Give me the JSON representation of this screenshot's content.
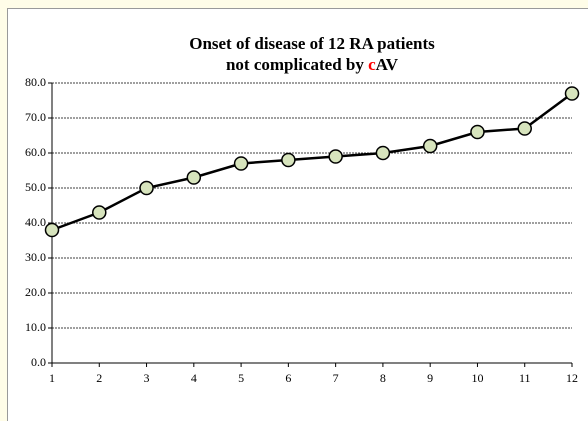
{
  "chart_data": {
    "type": "line",
    "title": [
      "Onset of disease of 12 RA patients",
      [
        "not complicated by ",
        "c",
        "AV"
      ]
    ],
    "highlight_color": "#ff0000",
    "categories": [
      "1",
      "2",
      "3",
      "4",
      "5",
      "6",
      "7",
      "8",
      "9",
      "10",
      "11",
      "12"
    ],
    "values": [
      38,
      43,
      50,
      53,
      57,
      58,
      59,
      60,
      62,
      66,
      67,
      77
    ],
    "color": "#000000",
    "marker_color": "#d7e4bd",
    "ylim": [
      0,
      80
    ],
    "yticks": [
      {
        "value": 0,
        "label": "0.0"
      },
      {
        "value": 10,
        "label": "10.0"
      },
      {
        "value": 20,
        "label": "20.0"
      },
      {
        "value": 30,
        "label": "30.0"
      },
      {
        "value": 40,
        "label": "40.0"
      },
      {
        "value": 50,
        "label": "50.0"
      },
      {
        "value": 60,
        "label": "60.0"
      },
      {
        "value": 70,
        "label": "70.0"
      },
      {
        "value": 80,
        "label": "80.0"
      }
    ],
    "grid": true
  }
}
